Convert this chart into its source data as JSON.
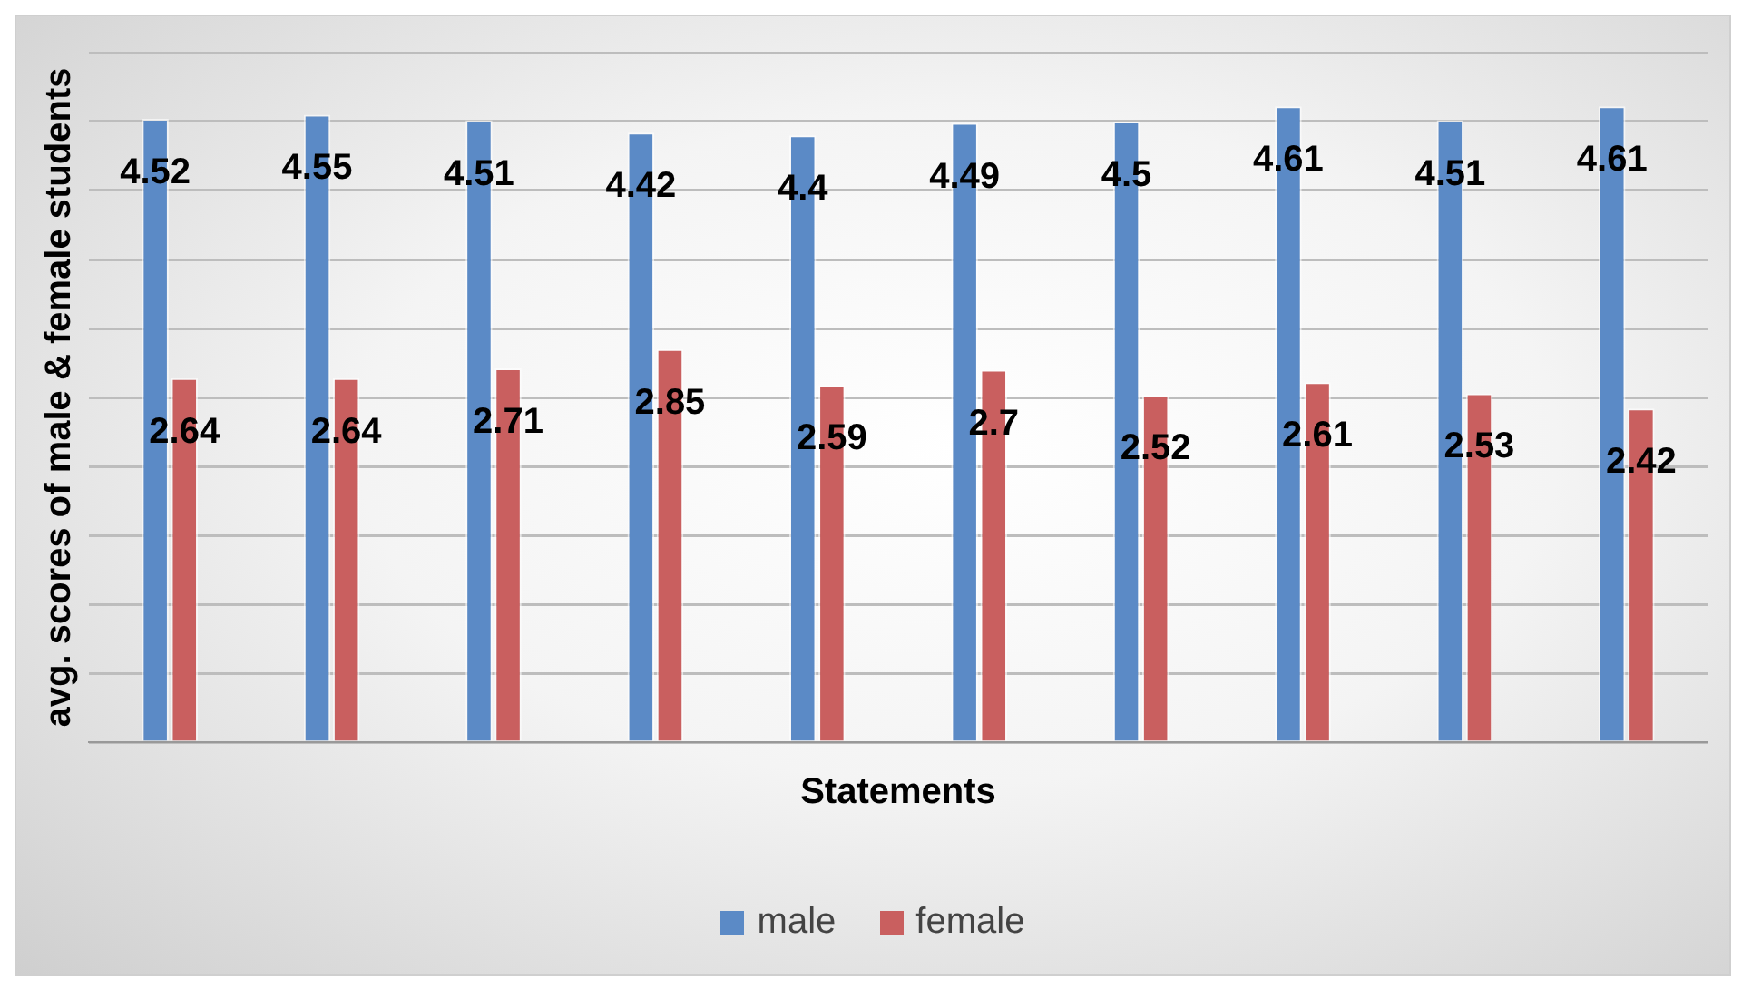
{
  "chart_data": {
    "type": "bar",
    "xlabel": "Statements",
    "ylabel": "avg. scores of male & female students",
    "categories": [
      null,
      null,
      null,
      null,
      null,
      null,
      null,
      null,
      null,
      null
    ],
    "series": [
      {
        "name": "male",
        "color": "#5b8ac6",
        "values": [
          4.52,
          4.55,
          4.51,
          4.42,
          4.4,
          4.49,
          4.5,
          4.61,
          4.51,
          4.61
        ]
      },
      {
        "name": "female",
        "color": "#c95f5f",
        "values": [
          2.64,
          2.64,
          2.71,
          2.85,
          2.59,
          2.7,
          2.52,
          2.61,
          2.53,
          2.42
        ]
      }
    ],
    "ylim": [
      0,
      5
    ],
    "yticks": [
      {
        "value": 0,
        "label": null
      },
      {
        "value": 0.5,
        "label": null
      },
      {
        "value": 1,
        "label": null
      },
      {
        "value": 1.5,
        "label": null
      },
      {
        "value": 2,
        "label": null
      },
      {
        "value": 2.5,
        "label": null
      },
      {
        "value": 3,
        "label": null
      },
      {
        "value": 3.5,
        "label": null
      },
      {
        "value": 4,
        "label": null
      },
      {
        "value": 4.5,
        "label": null
      },
      {
        "value": 5,
        "label": null
      }
    ],
    "grid": "y",
    "legend": "bottom",
    "tick_labels": false,
    "data_labels": true
  }
}
